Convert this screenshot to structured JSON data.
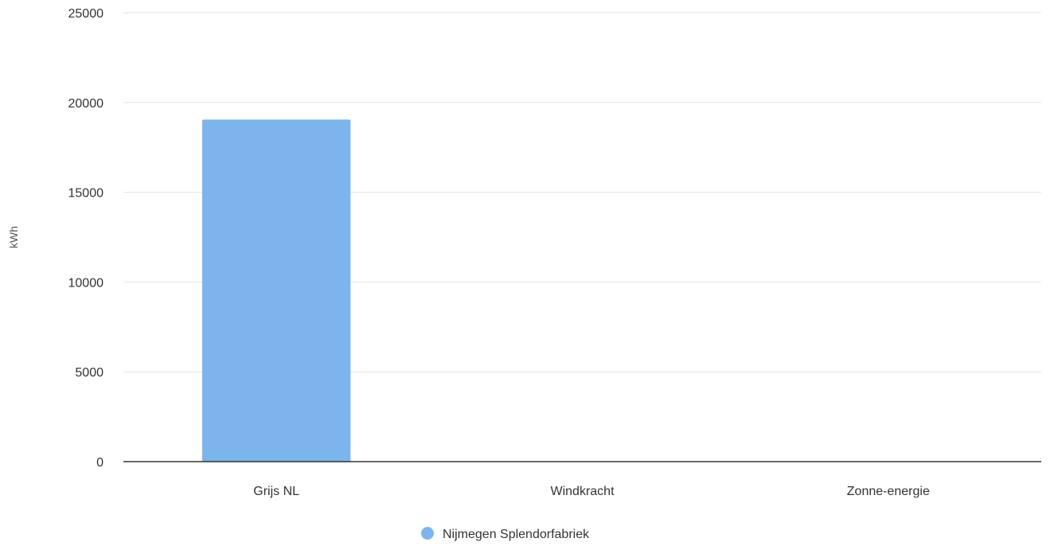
{
  "chart_data": {
    "type": "bar",
    "title": "",
    "xlabel": "",
    "ylabel": "kWh",
    "categories": [
      "Grijs NL",
      "Windkracht",
      "Zonne-energie"
    ],
    "series": [
      {
        "name": "Nijmegen Splendorfabriek",
        "values": [
          19050,
          0,
          0
        ],
        "color": "#7cb5ec"
      }
    ],
    "ylim": [
      0,
      25000
    ],
    "yticks": [
      0,
      5000,
      10000,
      15000,
      20000,
      25000
    ],
    "grid": true,
    "legend_position": "bottom-center"
  }
}
